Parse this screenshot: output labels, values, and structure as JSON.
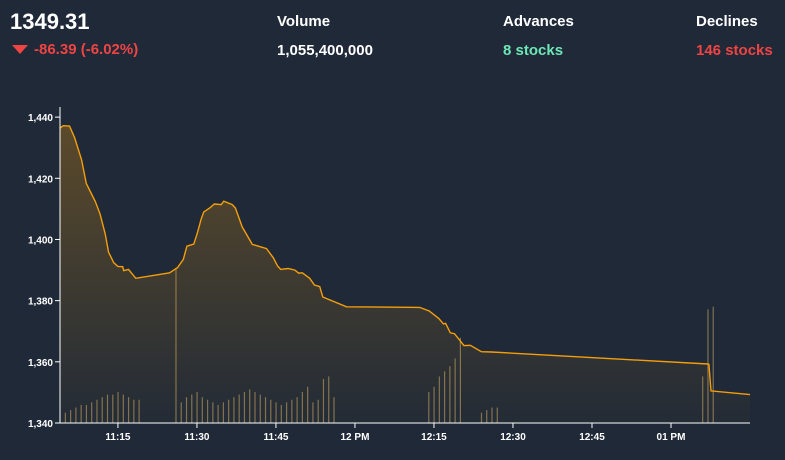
{
  "summary": {
    "index_value": "1349.31",
    "change": "-86.39 (-6.02%)",
    "volume_label": "Volume",
    "volume_value": "1,055,400,000",
    "advances_label": "Advances",
    "advances_value": "8 stocks",
    "declines_label": "Declines",
    "declines_value": "146 stocks"
  },
  "colors": {
    "line": "#f59e0b",
    "down": "#ef4444",
    "up": "#6ee7b7",
    "background": "#1f2937"
  },
  "chart_data": {
    "type": "area",
    "y_ticks": [
      "1,440",
      "1,420",
      "1,400",
      "1,380",
      "1,360",
      "1,340"
    ],
    "y_tick_values": [
      1440,
      1420,
      1400,
      1380,
      1360,
      1340
    ],
    "x_ticks": [
      "11:15",
      "11:30",
      "11:45",
      "12 PM",
      "12:15",
      "12:30",
      "12:45",
      "01 PM"
    ],
    "x_tick_values": [
      675,
      690,
      705,
      720,
      735,
      750,
      765,
      780
    ],
    "ylim": [
      1340,
      1442
    ],
    "xlim": [
      664,
      795
    ],
    "grid": false,
    "price": {
      "x": [
        664.0,
        664.6,
        665.8,
        666.8,
        668.1,
        669.0,
        670.7,
        671.6,
        672.6,
        673.2,
        674.2,
        675.0,
        675.9,
        676.1,
        677.0,
        678.4,
        684.8,
        686.3,
        687.4,
        688.1,
        689.4,
        690.1,
        690.8,
        691.3,
        692.5,
        693.3,
        694.6,
        695.1,
        696.7,
        697.3,
        698.6,
        700.5,
        703.2,
        704.5,
        705.3,
        705.9,
        707.3,
        708.6,
        709.3,
        710.0,
        711.4,
        712.3,
        713.3,
        713.9,
        718.4,
        732.3,
        734.1,
        735.9,
        736.8,
        737.2,
        738.1,
        738.9,
        740.7,
        741.9,
        744.0,
        745.9,
        787.0,
        787.2,
        787.6,
        795.0
      ],
      "y": [
        1436.4,
        1437.2,
        1437.1,
        1433.2,
        1426.0,
        1418.3,
        1412.4,
        1408.4,
        1401.7,
        1395.9,
        1392.4,
        1391.2,
        1391.1,
        1389.8,
        1390.2,
        1387.3,
        1389.1,
        1390.8,
        1393.5,
        1397.8,
        1398.5,
        1402.3,
        1406.7,
        1409.0,
        1410.4,
        1411.6,
        1411.4,
        1412.5,
        1411.4,
        1410.3,
        1404.1,
        1398.4,
        1397.0,
        1394.0,
        1391.4,
        1390.2,
        1390.5,
        1390.0,
        1389.0,
        1389.1,
        1387.3,
        1385.1,
        1384.6,
        1381.2,
        1378.0,
        1377.8,
        1376.6,
        1374.2,
        1372.4,
        1372.6,
        1369.5,
        1369.2,
        1365.3,
        1365.4,
        1363.3,
        1363.2,
        1359.3,
        1359.2,
        1350.5,
        1349.3
      ]
    },
    "volume_bars": {
      "x": [
        665,
        666,
        667,
        668,
        669,
        670,
        671,
        672,
        673,
        674,
        675,
        676,
        677,
        678,
        679,
        686,
        687,
        688,
        689,
        690,
        691,
        692,
        693,
        694,
        695,
        696,
        697,
        698,
        699,
        700,
        701,
        702,
        703,
        704,
        705,
        706,
        707,
        708,
        709,
        710,
        711,
        712,
        713,
        714,
        715,
        716,
        734,
        735,
        736,
        737,
        738,
        739,
        740,
        744,
        745,
        746,
        747,
        786,
        787,
        788
      ],
      "v": [
        4,
        5,
        6,
        7,
        7,
        8,
        9,
        10,
        11,
        11,
        12,
        11,
        10,
        9,
        9,
        60,
        8,
        10,
        11,
        12,
        10,
        9,
        8,
        7,
        8,
        9,
        10,
        11,
        12,
        13,
        12,
        11,
        10,
        9,
        8,
        7,
        8,
        9,
        10,
        12,
        14,
        8,
        9,
        17,
        18,
        10,
        12,
        14,
        18,
        20,
        22,
        25,
        33,
        4,
        5,
        6,
        6,
        18,
        44,
        45
      ]
    }
  }
}
